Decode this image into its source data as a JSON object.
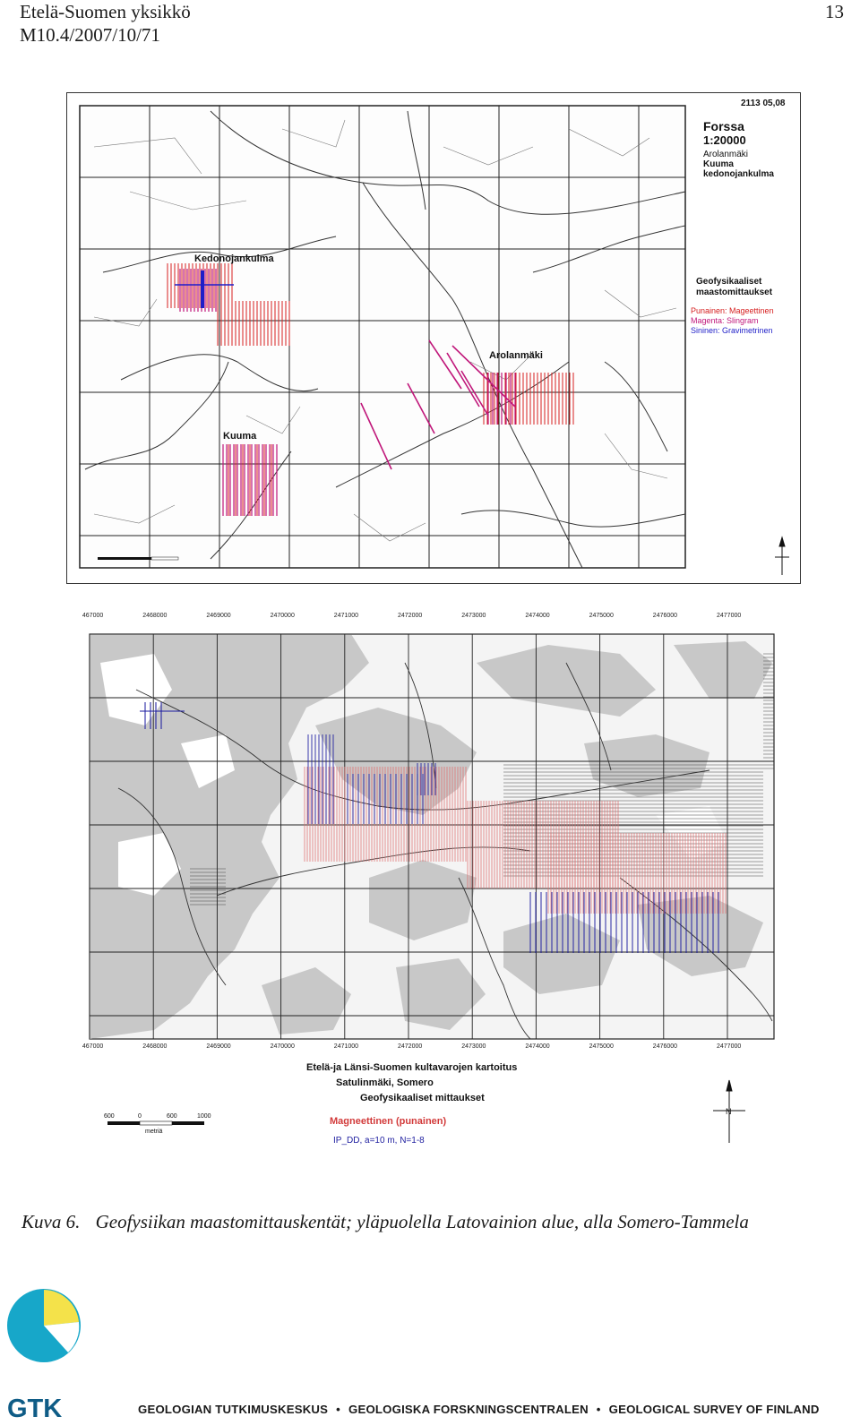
{
  "header": {
    "unit": "Etelä-Suomen yksikkö",
    "report_id": "M10.4/2007/10/71",
    "page_number": "13"
  },
  "map_top": {
    "sheet_id": "2113 05,08",
    "title": "Forssa",
    "scale": "1:20000",
    "area_names": [
      "Arolanmäki",
      "Kuuma",
      "kedonojankulma"
    ],
    "legend_title_1": "Geofysikaaliset",
    "legend_title_2": "maastomittaukset",
    "legend": [
      {
        "label": "Punainen: Mageettinen",
        "color": "#d62020"
      },
      {
        "label": "Magenta: Slingram",
        "color": "#c0177a"
      },
      {
        "label": "Sininen: Gravimetrinen",
        "color": "#1e1ec8"
      }
    ],
    "place_labels": [
      "Kedonojankulma",
      "Arolanmäki",
      "Kuuma"
    ]
  },
  "map_bottom": {
    "top_ticks": [
      "2467000",
      "2468000",
      "2469000",
      "2470000",
      "2471000",
      "2472000",
      "2473000",
      "2474000",
      "2475000",
      "2476000",
      "2477000"
    ],
    "bottom_ticks": [
      "2467000",
      "2468000",
      "2469000",
      "2470000",
      "2471000",
      "2472000",
      "2473000",
      "2474000",
      "2475000",
      "2476000",
      "2477000"
    ],
    "title_1": "Etelä-ja Länsi-Suomen kultavarojen kartoitus",
    "title_2": "Satulinmäki, Somero",
    "title_3": "Geofysikaaliset mittaukset",
    "legend_magnetic": "Magneettinen (punainen)",
    "legend_ip": "IP_DD, a=10 m, N=1-8",
    "scale_labels": [
      "600",
      "0",
      "600",
      "1000"
    ],
    "scale_unit": "metriä",
    "north_label": "N",
    "colors": {
      "magnetic": "#e07070",
      "ip": "#1a1aa0"
    }
  },
  "caption": {
    "label": "Kuva 6.",
    "text": "Geofysiikan maastomittauskentät; yläpuolella Latovainion alue, alla Somero-Tammela"
  },
  "footer": {
    "logo_text": "GTK",
    "orgs": [
      "GEOLOGIAN TUTKIMUSKESKUS",
      "GEOLOGISKA FORSKNINGSCENTRALEN",
      "GEOLOGICAL SURVEY OF FINLAND"
    ],
    "separator": "•"
  }
}
